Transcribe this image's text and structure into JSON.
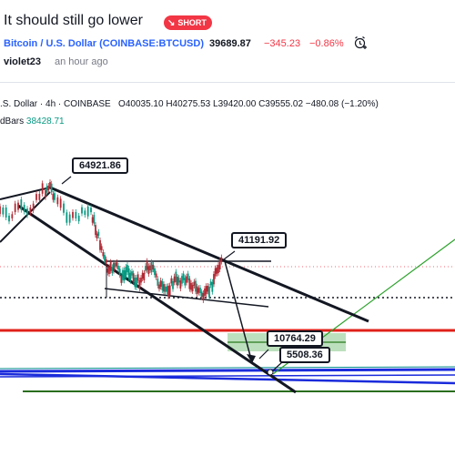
{
  "header": {
    "title": "It should still go lower",
    "badge_label": "SHORT",
    "symbol": "Bitcoin / U.S. Dollar (COINBASE:BTCUSD)",
    "price": "39689.87",
    "change": "−345.23",
    "change_pct": "−0.86%",
    "author": "violet23",
    "time": "an hour ago"
  },
  "legend": {
    "symbol_line": ".S. Dollar · 4h · COINBASE",
    "ohlc": "O40035.10 H40275.53 L39420.00 C39555.02 −480.08 (−1.20%)",
    "indicator_name": "dBars",
    "indicator_value": "38428.71"
  },
  "annotations": {
    "label_high": "64921.86",
    "label_mid": "41191.92",
    "label_target1": "10764.29",
    "label_target2": "5508.36"
  },
  "colors": {
    "accent_red": "#f23645",
    "accent_blue": "#2962ff",
    "positive_green": "#089981",
    "line_red": "#e0201a",
    "line_blue": "#1a2bdb",
    "line_green": "#2a7a1e",
    "zone_green": "#a5d6a7"
  },
  "icons": {
    "badge_icon": "arrow-down-right-icon",
    "alert_icon": "alarm-clock-plus-icon"
  }
}
